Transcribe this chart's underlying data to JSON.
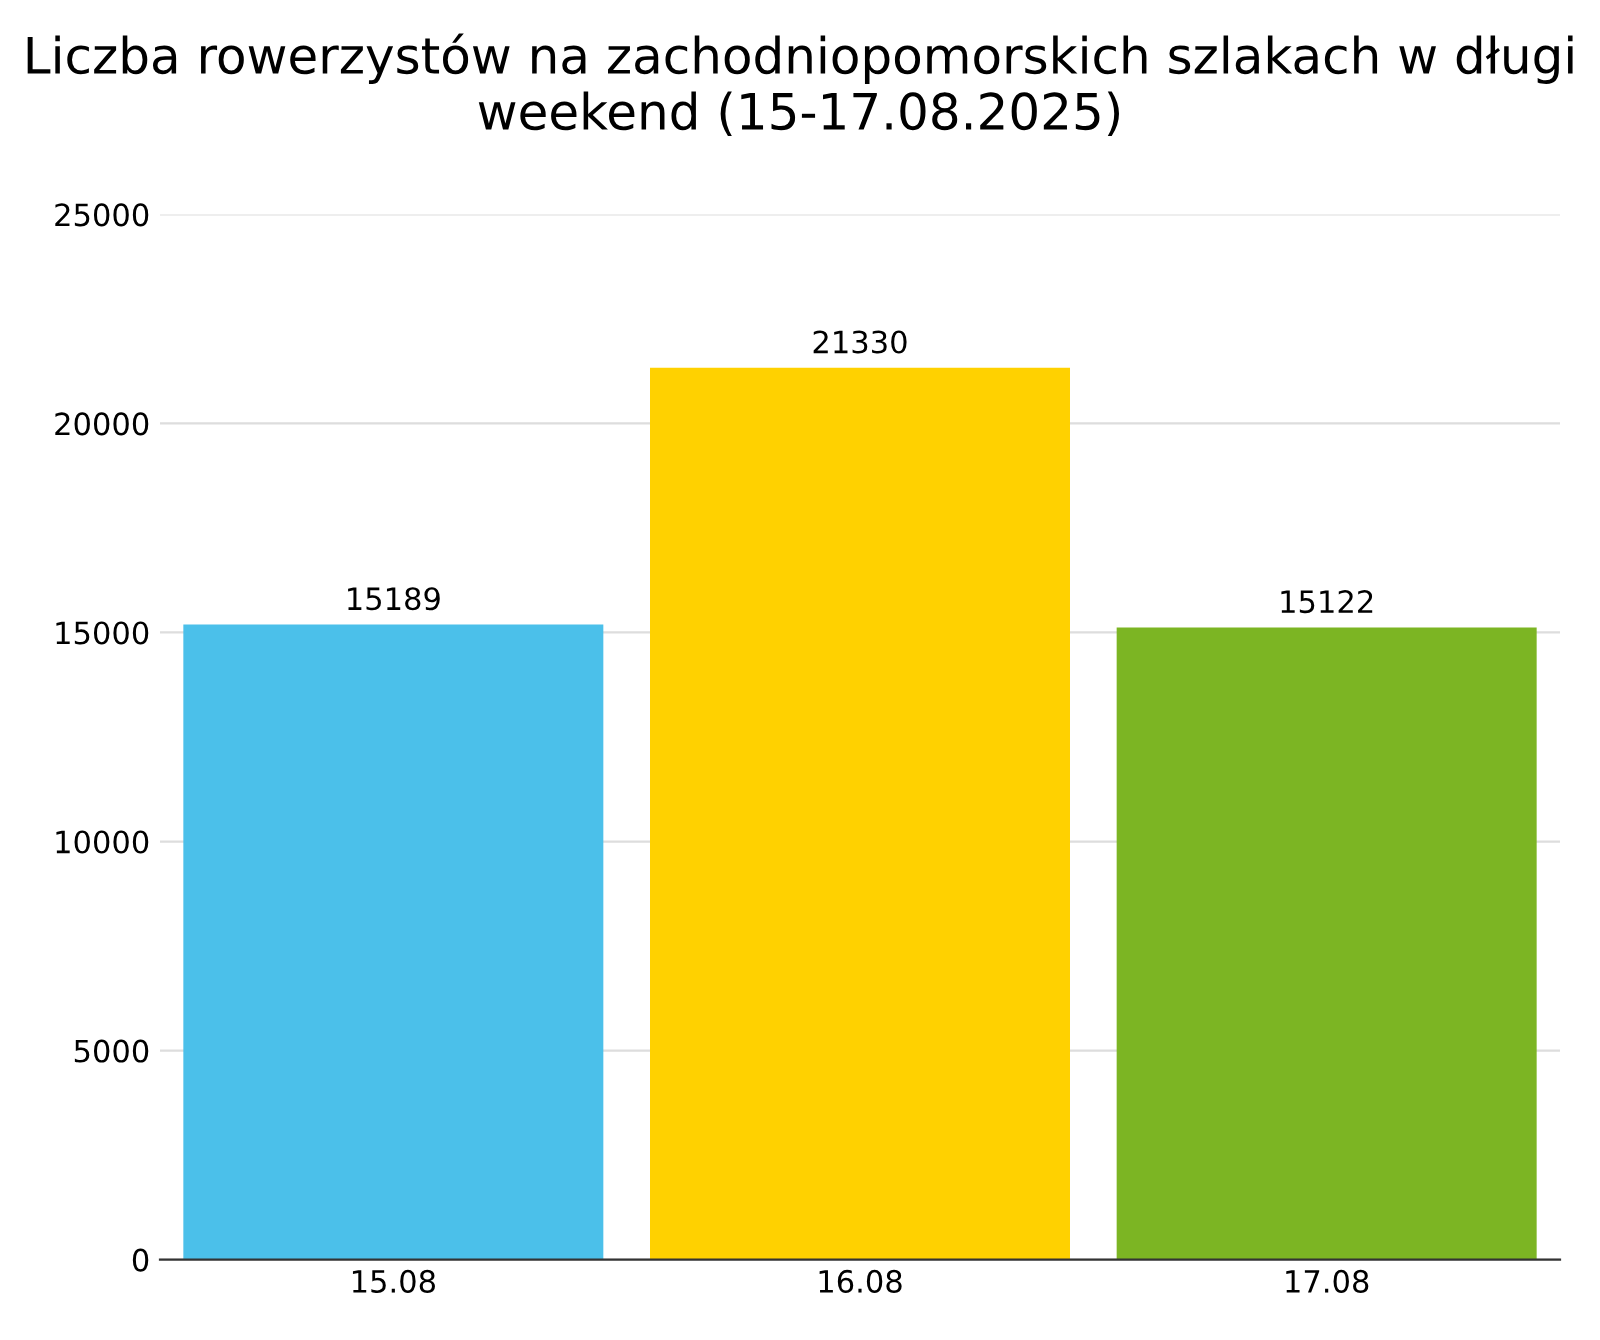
{
  "chart_data": {
    "type": "bar",
    "title": "Liczba rowerzystów na zachodniopomorskich szlakach w długi weekend (15-17.08.2025)",
    "categories": [
      "15.08",
      "16.08",
      "17.08"
    ],
    "values": [
      15189,
      21330,
      15122
    ],
    "colors": [
      "#4bc0ea",
      "#ffd100",
      "#7cb523"
    ],
    "ylim": [
      0,
      25000
    ],
    "yticks": [
      0,
      5000,
      10000,
      15000,
      20000,
      25000
    ],
    "grid": "y",
    "data_labels": true
  }
}
